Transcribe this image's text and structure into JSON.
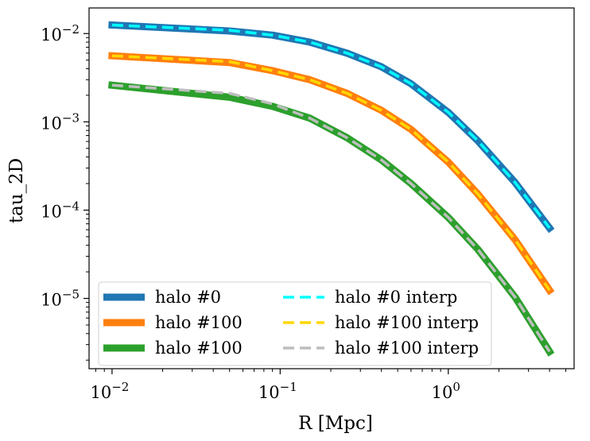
{
  "chart_data": {
    "type": "line",
    "title": "",
    "xlabel": "R [Mpc]",
    "ylabel": "tau_2D",
    "xscale": "log",
    "yscale": "log",
    "xlim": [
      0.0073,
      5.6
    ],
    "ylim": [
      1.6e-06,
      0.0195
    ],
    "legend_position": "bottom-left",
    "legend_columns": 2,
    "x_ticks": [
      {
        "value": 0.01,
        "base": "10",
        "exp": "−2"
      },
      {
        "value": 0.1,
        "base": "10",
        "exp": "−1"
      },
      {
        "value": 1,
        "base": "10",
        "exp": "0"
      }
    ],
    "y_ticks": [
      {
        "value": 0.01,
        "base": "10",
        "exp": "−2"
      },
      {
        "value": 0.001,
        "base": "10",
        "exp": "−3"
      },
      {
        "value": 0.0001,
        "base": "10",
        "exp": "−4"
      },
      {
        "value": 1e-05,
        "base": "10",
        "exp": "−5"
      }
    ],
    "series": [
      {
        "name": "halo #0",
        "color": "#1f77b4",
        "style": "solid",
        "x": [
          0.01,
          0.05,
          0.09,
          0.15,
          0.25,
          0.4,
          0.6,
          1.0,
          1.5,
          2.5,
          4.0
        ],
        "y": [
          0.0125,
          0.0107,
          0.0096,
          0.008,
          0.006,
          0.0042,
          0.0027,
          0.00128,
          0.00061,
          0.000205,
          6.27e-05
        ]
      },
      {
        "name": "halo #100",
        "color": "#ff7f0e",
        "style": "solid",
        "x": [
          0.01,
          0.05,
          0.09,
          0.15,
          0.25,
          0.4,
          0.6,
          1.0,
          1.5,
          2.5,
          4.0
        ],
        "y": [
          0.0056,
          0.0047,
          0.0038,
          0.003,
          0.0021,
          0.00135,
          0.00082,
          0.00035,
          0.000152,
          4.6e-05,
          1.24e-05
        ]
      },
      {
        "name": "halo #100",
        "color": "#2ca02c",
        "style": "solid",
        "x": [
          0.01,
          0.05,
          0.09,
          0.15,
          0.25,
          0.4,
          0.6,
          1.0,
          1.5,
          2.5,
          4.0
        ],
        "y": [
          0.0026,
          0.0019,
          0.0015,
          0.0011,
          0.00066,
          0.00037,
          0.0002,
          8.25e-05,
          3.6e-05,
          1.03e-05,
          2.5e-06
        ]
      },
      {
        "name": "halo #0 interp",
        "color": "#00ffff",
        "style": "dashed",
        "x": [
          0.01,
          0.05,
          0.09,
          0.15,
          0.25,
          0.4,
          0.6,
          1.0,
          1.5,
          2.5,
          4.0
        ],
        "y": [
          0.0125,
          0.0109,
          0.0096,
          0.008,
          0.006,
          0.0042,
          0.0027,
          0.00128,
          0.00061,
          0.000205,
          6.27e-05
        ]
      },
      {
        "name": "halo #100 interp",
        "color": "#ffd700",
        "style": "dashed",
        "x": [
          0.01,
          0.05,
          0.09,
          0.15,
          0.25,
          0.4,
          0.6,
          1.0,
          1.5,
          2.5,
          4.0
        ],
        "y": [
          0.0056,
          0.0048,
          0.0038,
          0.003,
          0.0021,
          0.00135,
          0.00082,
          0.00035,
          0.000152,
          4.6e-05,
          1.24e-05
        ]
      },
      {
        "name": "halo #100 interp",
        "color": "#bebebe",
        "style": "dashed",
        "x": [
          0.01,
          0.05,
          0.09,
          0.15,
          0.25,
          0.4,
          0.6,
          1.0,
          1.5,
          2.5,
          4.0
        ],
        "y": [
          0.0026,
          0.0021,
          0.0016,
          0.0011,
          0.00066,
          0.00037,
          0.0002,
          8.25e-05,
          3.6e-05,
          1.03e-05,
          2.5e-06
        ]
      }
    ]
  }
}
